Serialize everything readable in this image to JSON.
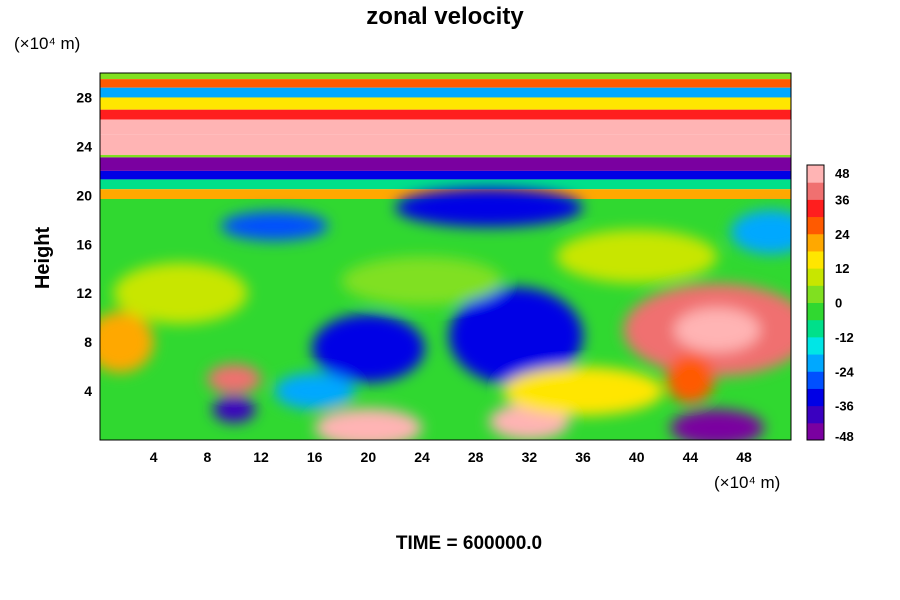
{
  "chart_data": {
    "type": "heatmap",
    "title": "zonal velocity",
    "ylabel": "Height",
    "xlabel": "",
    "x_unit": "(×10⁴ m)",
    "y_unit": "(×10⁴ m)",
    "xlim": [
      0,
      51.5
    ],
    "ylim": [
      0,
      30
    ],
    "x_ticks": [
      4,
      8,
      12,
      16,
      20,
      24,
      28,
      32,
      36,
      40,
      44,
      48
    ],
    "y_ticks": [
      4,
      8,
      12,
      16,
      20,
      24,
      28
    ],
    "colorbar": {
      "min": -48,
      "max": 48,
      "ticks": [
        48,
        36,
        24,
        12,
        0,
        -12,
        -24,
        -36,
        -48
      ],
      "colors": [
        "#7a00a0",
        "#3a00c0",
        "#0000e6",
        "#0050ff",
        "#00a8ff",
        "#00e6e6",
        "#00e08a",
        "#30d830",
        "#80e020",
        "#c8e600",
        "#ffe600",
        "#ffa800",
        "#ff5a00",
        "#ff1e1e",
        "#f07070",
        "#ffb4b4"
      ]
    },
    "bands": [
      {
        "y": [
          29.5,
          30
        ],
        "value": 5
      },
      {
        "y": [
          28.8,
          29.5
        ],
        "value": 26
      },
      {
        "y": [
          28.0,
          28.8
        ],
        "value": -22
      },
      {
        "y": [
          27.0,
          28.0
        ],
        "value": 16
      },
      {
        "y": [
          26.2,
          27.0
        ],
        "value": 33
      },
      {
        "y": [
          25.0,
          26.2
        ],
        "value": 42
      },
      {
        "y": [
          23.3,
          25.0
        ],
        "value": 50
      },
      {
        "y": [
          23.1,
          23.3
        ],
        "value": 0
      },
      {
        "y": [
          22.0,
          23.1
        ],
        "value": -50
      },
      {
        "y": [
          21.3,
          22.0
        ],
        "value": -36
      },
      {
        "y": [
          20.5,
          21.3
        ],
        "value": -12
      },
      {
        "y": [
          19.7,
          20.5
        ],
        "value": 20
      },
      {
        "y": [
          0,
          19.7
        ],
        "value": -4
      }
    ],
    "features": [
      {
        "x": 46,
        "y": 9,
        "rx": 7,
        "ry": 3.8,
        "value": 40
      },
      {
        "x": 46,
        "y": 9,
        "rx": 3.2,
        "ry": 1.8,
        "value": 50
      },
      {
        "x": 20,
        "y": 7.5,
        "rx": 4.2,
        "ry": 2.8,
        "value": -36
      },
      {
        "x": 31,
        "y": 8.5,
        "rx": 5,
        "ry": 4,
        "value": -36
      },
      {
        "x": 29,
        "y": 19,
        "rx": 7,
        "ry": 1.6,
        "value": -34
      },
      {
        "x": 13,
        "y": 17.5,
        "rx": 4,
        "ry": 1.2,
        "value": -26
      },
      {
        "x": 1.5,
        "y": 8,
        "rx": 2.5,
        "ry": 2.5,
        "value": 22
      },
      {
        "x": 10,
        "y": 5,
        "rx": 2,
        "ry": 1.2,
        "value": 40
      },
      {
        "x": 10,
        "y": 2.5,
        "rx": 1.6,
        "ry": 1.1,
        "value": -38
      },
      {
        "x": 20,
        "y": 1,
        "rx": 4,
        "ry": 1.6,
        "value": 44
      },
      {
        "x": 32,
        "y": 1.5,
        "rx": 3,
        "ry": 1.5,
        "value": 42
      },
      {
        "x": 44,
        "y": 5,
        "rx": 1.8,
        "ry": 2,
        "value": 28
      },
      {
        "x": 46,
        "y": 1,
        "rx": 3.5,
        "ry": 1.5,
        "value": -48
      },
      {
        "x": 36,
        "y": 4,
        "rx": 6,
        "ry": 2,
        "value": 14
      },
      {
        "x": 6,
        "y": 12,
        "rx": 5,
        "ry": 2.5,
        "value": 8
      },
      {
        "x": 24,
        "y": 13,
        "rx": 6,
        "ry": 2,
        "value": 4
      },
      {
        "x": 40,
        "y": 15,
        "rx": 6,
        "ry": 2.2,
        "value": 10
      },
      {
        "x": 50,
        "y": 17,
        "rx": 3,
        "ry": 1.8,
        "value": -24
      },
      {
        "x": 16,
        "y": 4,
        "rx": 3,
        "ry": 1.5,
        "value": -24
      }
    ]
  },
  "caption": "TIME = 600000.0"
}
